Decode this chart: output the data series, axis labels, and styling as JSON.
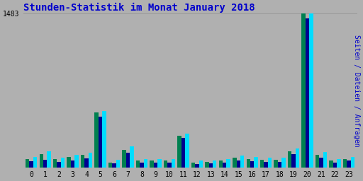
{
  "title": "Stunden-Statistik im Monat January 2018",
  "title_color": "#0000cc",
  "background_color": "#b0b0b0",
  "plot_bg_color": "#b0b0b0",
  "ylabel_right": "Seiten / Dateien / Anfragen",
  "ylim": [
    0,
    1483
  ],
  "ytick_label": "1483",
  "hours": [
    0,
    1,
    2,
    3,
    4,
    5,
    6,
    7,
    8,
    9,
    10,
    11,
    12,
    13,
    14,
    15,
    16,
    17,
    18,
    19,
    20,
    21,
    22,
    23
  ],
  "seiten": [
    85,
    130,
    80,
    100,
    120,
    530,
    50,
    170,
    65,
    65,
    65,
    310,
    48,
    55,
    65,
    95,
    80,
    75,
    75,
    160,
    1483,
    120,
    65,
    80
  ],
  "dateien": [
    60,
    75,
    55,
    70,
    90,
    490,
    40,
    140,
    50,
    50,
    50,
    285,
    35,
    40,
    50,
    70,
    60,
    55,
    55,
    130,
    1440,
    95,
    45,
    65
  ],
  "anfragen": [
    105,
    155,
    95,
    120,
    145,
    545,
    75,
    205,
    85,
    85,
    85,
    330,
    65,
    68,
    80,
    115,
    100,
    95,
    95,
    185,
    1483,
    150,
    80,
    100
  ],
  "color_seiten": "#008050",
  "color_dateien": "#000090",
  "color_anfragen": "#00ddff",
  "bar_width": 0.28
}
